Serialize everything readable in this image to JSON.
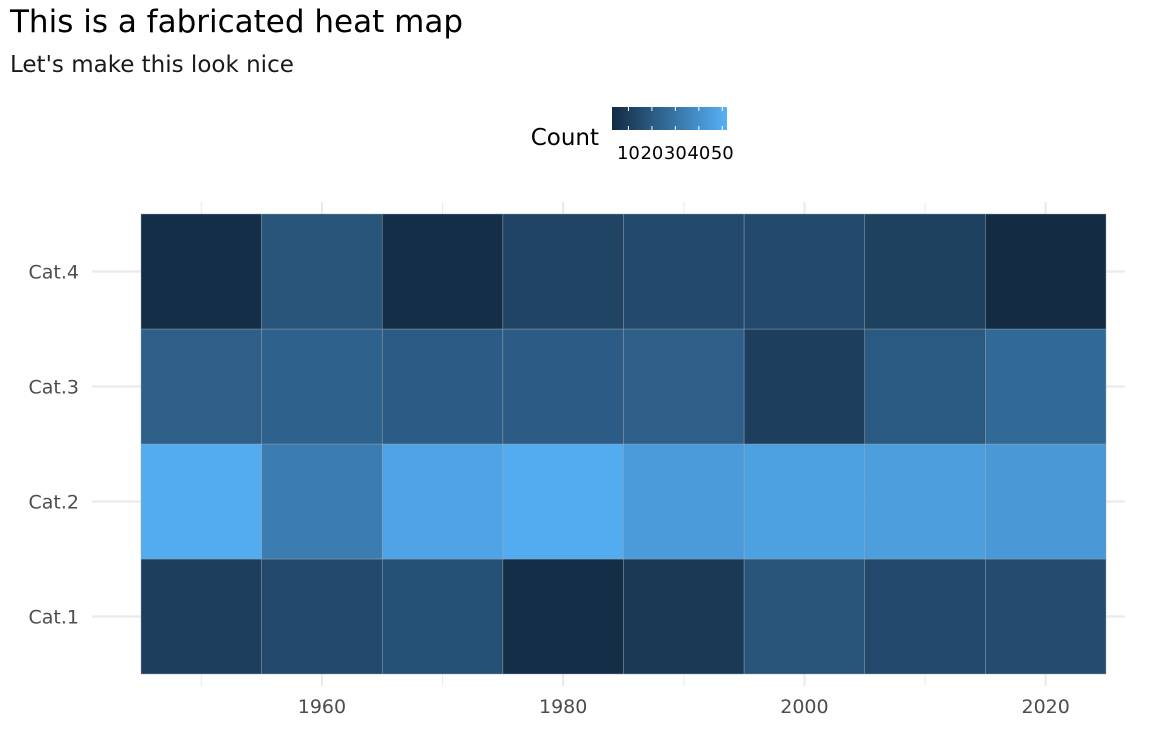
{
  "title": "This is a fabricated heat map",
  "subtitle": "Let's make this look nice",
  "chart_data": {
    "type": "heatmap",
    "title": "This is a fabricated heat map",
    "subtitle": "Let's make this look nice",
    "x": [
      1950,
      1960,
      1970,
      1980,
      1990,
      2000,
      2010,
      2020
    ],
    "x_ticks": [
      1960,
      1980,
      2000,
      2020
    ],
    "x_tick_labels": [
      "1960",
      "1980",
      "2000",
      "2020"
    ],
    "xlim": [
      1945,
      2025
    ],
    "categories": [
      "Cat.1",
      "Cat.2",
      "Cat.3",
      "Cat.4"
    ],
    "values": [
      [
        10,
        14,
        17,
        4,
        8,
        18,
        14,
        15
      ],
      [
        50,
        33,
        47,
        50,
        44,
        46,
        45,
        43
      ],
      [
        22,
        23,
        21,
        21,
        22,
        10,
        20,
        26
      ],
      [
        4,
        18,
        4,
        12,
        14,
        14,
        11,
        3
      ]
    ],
    "legend": {
      "title": "Count",
      "position": "top",
      "ticks": [
        10,
        20,
        30,
        40,
        50
      ],
      "tick_labels": [
        "10",
        "20",
        "30",
        "40",
        "50"
      ],
      "range": [
        3,
        52
      ],
      "low_color": "#132B43",
      "high_color": "#56B1F7"
    },
    "grid": true,
    "background_color": "#ffffff",
    "grid_color": "#ebebeb",
    "tile_border_color": "#9aa6b4"
  }
}
